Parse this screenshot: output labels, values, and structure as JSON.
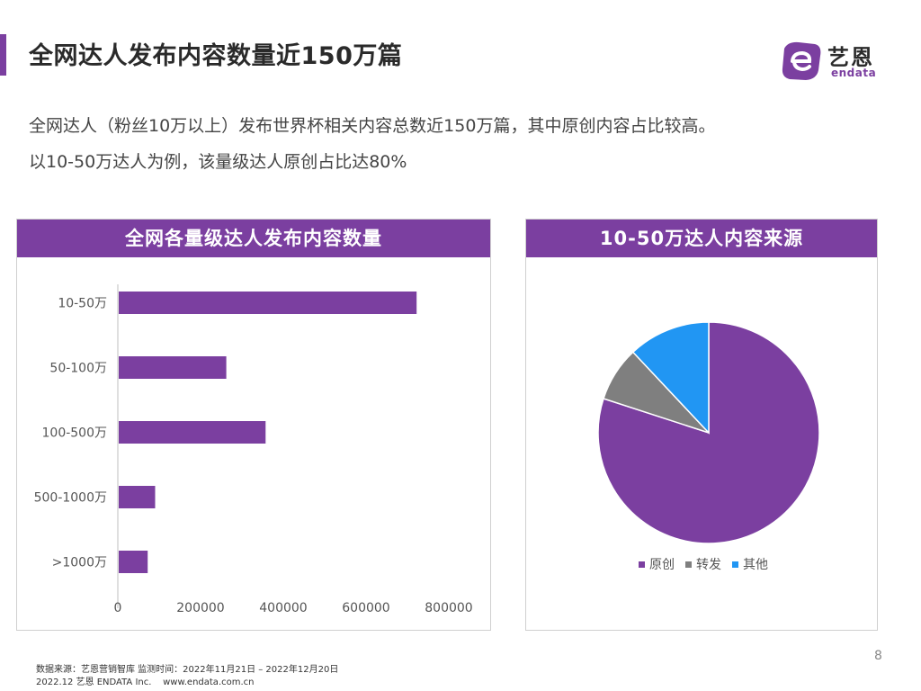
{
  "header": {
    "title": "全网达人发布内容数量近150万篇",
    "logo_cn": "艺恩",
    "logo_en": "endata"
  },
  "intro": {
    "line1": "全网达人（粉丝10万以上）发布世界杯相关内容总数近150万篇，其中原创内容占比较高。",
    "line2": "以10-50万达人为例，该量级达人原创占比达80%"
  },
  "left_panel": {
    "title": "全网各量级达人发布内容数量"
  },
  "right_panel": {
    "title": "10-50万达人内容来源"
  },
  "chart_data": [
    {
      "type": "bar",
      "orientation": "horizontal",
      "title": "全网各量级达人发布内容数量",
      "categories": [
        "10-50万",
        "50-100万",
        "100-500万",
        "500-1000万",
        ">1000万"
      ],
      "values": [
        720000,
        260000,
        355000,
        88000,
        70000
      ],
      "xlim": [
        0,
        800000
      ],
      "xticks": [
        "0",
        "200000",
        "400000",
        "600000",
        "800000"
      ],
      "color": "#7b3fa0",
      "grid": false
    },
    {
      "type": "pie",
      "title": "10-50万达人内容来源",
      "labels": [
        "原创",
        "转发",
        "其他"
      ],
      "values": [
        80,
        8,
        12
      ],
      "colors": [
        "#7b3fa0",
        "#7f7f7f",
        "#2196f3"
      ],
      "legend": "bottom"
    }
  ],
  "footer": {
    "source": "数据来源：艺恩营销智库 监测时间：2022年11月21日 – 2022年12月20日",
    "copyright": "2022.12 艺恩 ENDATA Inc.    www.endata.com.cn",
    "page_number": "8"
  }
}
